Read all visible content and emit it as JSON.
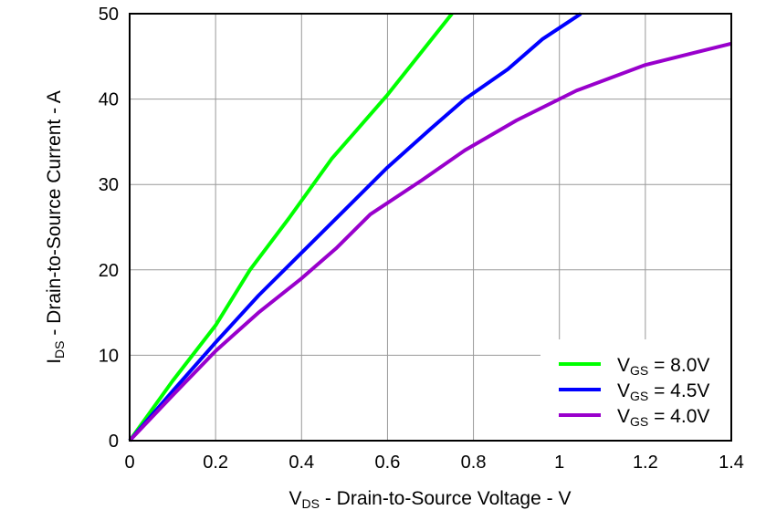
{
  "chart_data": {
    "type": "line",
    "xlabel": {
      "main": "V",
      "sub": "DS",
      "rest": " - Drain-to-Source Voltage - V"
    },
    "ylabel": {
      "main": "I",
      "sub": "DS",
      "rest": " - Drain-to-Source Current - A"
    },
    "xlim": [
      0,
      1.4
    ],
    "ylim": [
      0,
      50
    ],
    "xticks": [
      "0",
      "0.2",
      "0.4",
      "0.6",
      "0.8",
      "1",
      "1.2",
      "1.4"
    ],
    "yticks": [
      "0",
      "10",
      "20",
      "30",
      "40",
      "50"
    ],
    "grid": true,
    "legend_position": "bottom-right",
    "series": [
      {
        "name": {
          "main": "V",
          "sub": "GS",
          "rest": " = 8.0V"
        },
        "color": "#00ff00",
        "x": [
          0,
          0.1,
          0.2,
          0.28,
          0.37,
          0.47,
          0.6,
          0.75
        ],
        "y": [
          0,
          7,
          13.5,
          20,
          26,
          33,
          40.5,
          50
        ]
      },
      {
        "name": {
          "main": "V",
          "sub": "GS",
          "rest": " = 4.5V"
        },
        "color": "#0000ff",
        "x": [
          0,
          0.1,
          0.2,
          0.3,
          0.4,
          0.5,
          0.6,
          0.7,
          0.78,
          0.88,
          0.96,
          1.05
        ],
        "y": [
          0,
          5.8,
          11.5,
          17,
          22,
          27,
          32,
          36.5,
          40,
          43.5,
          47,
          50
        ]
      },
      {
        "name": {
          "main": "V",
          "sub": "GS",
          "rest": " = 4.0V"
        },
        "color": "#9900cc",
        "x": [
          0,
          0.1,
          0.2,
          0.3,
          0.4,
          0.48,
          0.56,
          0.68,
          0.78,
          0.9,
          1.04,
          1.2,
          1.4
        ],
        "y": [
          0,
          5.3,
          10.5,
          15,
          19,
          22.5,
          26.5,
          30.5,
          34,
          37.5,
          41,
          44,
          46.5
        ]
      }
    ]
  }
}
